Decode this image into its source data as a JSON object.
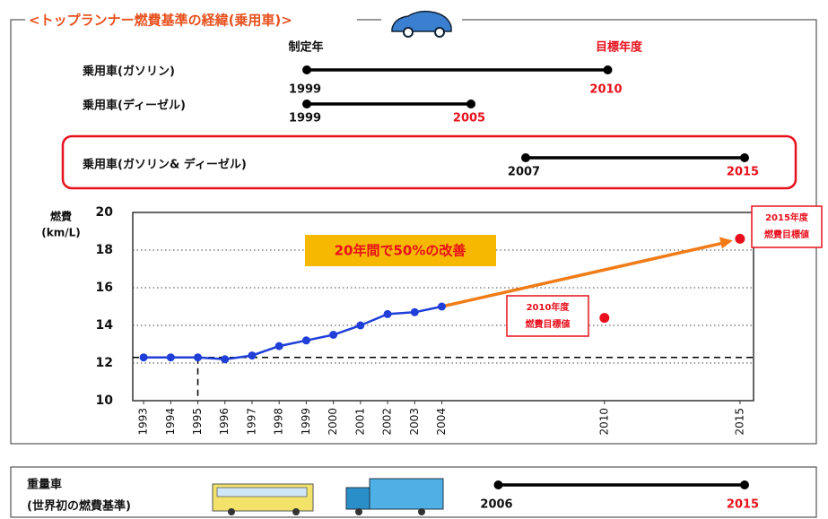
{
  "header": {
    "title": "<トップランナー燃費基準の経緯(乗用車)>"
  },
  "timeline": {
    "start_label": "制定年",
    "end_label": "目標年度",
    "rows": [
      {
        "label": "乗用車(ガソリン)",
        "start": 1999,
        "end": 2010
      },
      {
        "label": "乗用車(ディーゼル)",
        "start": 1999,
        "end": 2005
      },
      {
        "label": "乗用車(ガソリン& ディーゼル)",
        "start": 2007,
        "end": 2015
      }
    ]
  },
  "chart_data": {
    "type": "line",
    "ylabel": [
      "燃費",
      "(km/L)"
    ],
    "x": [
      1993,
      1994,
      1995,
      1996,
      1997,
      1998,
      1999,
      2000,
      2001,
      2002,
      2003,
      2004
    ],
    "series": [
      {
        "color": "#1f3fd8",
        "values": [
          12.3,
          12.3,
          12.3,
          12.2,
          12.4,
          12.9,
          13.2,
          13.5,
          14.0,
          14.6,
          14.7,
          15.0
        ]
      }
    ],
    "targets": [
      {
        "label_lines": [
          "2010年度",
          "燃費目標値"
        ],
        "x": 2010,
        "y": 14.4,
        "color": "#e8101c"
      },
      {
        "label_lines": [
          "2015年度",
          "燃費目標値"
        ],
        "x": 2015,
        "y": 18.6,
        "color": "#e8101c"
      }
    ],
    "annotation": "20年間で50%の改善",
    "xlim": [
      1992.6,
      2015.5
    ],
    "xticks": [
      1993,
      1994,
      1995,
      1996,
      1997,
      1998,
      1999,
      2000,
      2001,
      2002,
      2003,
      2004,
      2010,
      2015
    ],
    "ylim": [
      10,
      20
    ],
    "yticks": [
      10,
      12,
      14,
      16,
      18,
      20
    ],
    "grid": true
  },
  "heavy": {
    "label_lines": [
      "重量車",
      "(世界初の燃費基準)"
    ],
    "start": 2006,
    "end": 2015
  }
}
